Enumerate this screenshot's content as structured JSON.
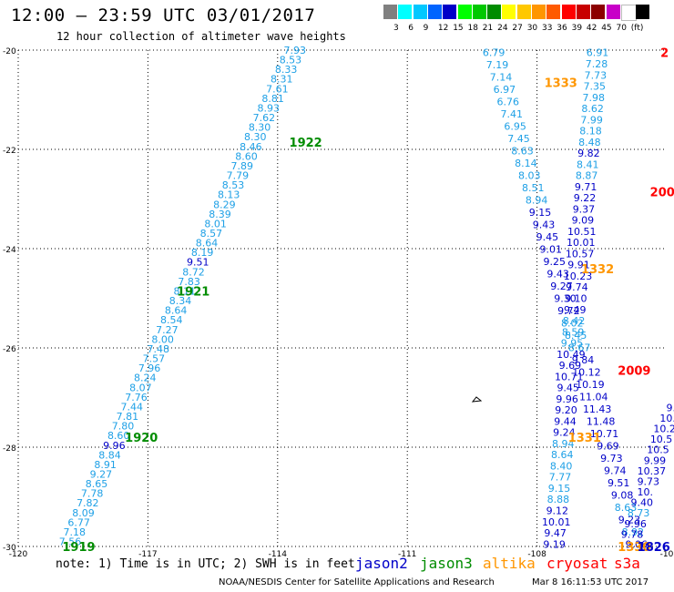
{
  "header": {
    "title": "12:00 – 23:59 UTC 03/01/2017",
    "subtitle": "12 hour collection of altimeter wave heights"
  },
  "legend": {
    "colors": [
      "#808080",
      "#00ffff",
      "#00c8ff",
      "#0064ff",
      "#0000c8",
      "#00ff00",
      "#00c800",
      "#008c00",
      "#ffff00",
      "#ffc800",
      "#ff9600",
      "#ff5a00",
      "#ff0000",
      "#c80000",
      "#8c0000",
      "#c800c8",
      "#ffffff",
      "#000000"
    ],
    "labels": [
      "3",
      "6",
      "9",
      "12",
      "15",
      "18",
      "21",
      "24",
      "27",
      "30",
      "33",
      "36",
      "39",
      "42",
      "45",
      "70",
      "(ft)"
    ]
  },
  "axes": {
    "lon_labels": [
      "-120",
      "-117",
      "-114",
      "-111",
      "-108",
      "-10"
    ],
    "lat_labels": [
      "-20",
      "-22",
      "-24",
      "-26",
      "-28",
      "-30"
    ],
    "lon_range": [
      -120,
      -105
    ],
    "lat_range": [
      -30,
      -20
    ]
  },
  "colors": {
    "light": "#1ea0e6",
    "dark": "#0000c8",
    "jason2": "#0000c8",
    "jason3": "#008c00",
    "altika": "#ff9600",
    "cryosat": "#ff0000"
  },
  "tracks": [
    {
      "name": "1919-1922",
      "start": [
        -113.6,
        -20.0
      ],
      "end": [
        -118.8,
        -29.9
      ],
      "values": [
        "7.93",
        "8.53",
        "8.33",
        "8.31",
        "7.61",
        "8.81",
        "8.93",
        "7.62",
        "8.30",
        "8.30",
        "8.46",
        "8.60",
        "7.89",
        "7.79",
        "8.53",
        "8.13",
        "8.29",
        "8.39",
        "8.01",
        "8.57",
        "8.64",
        "8.19",
        "9.51",
        "8.72",
        "7.83",
        "8.11",
        "8.34",
        "8.64",
        "8.54",
        "7.27",
        "8.00",
        "7.48",
        "7.57",
        "7.96",
        "8.24",
        "8.07",
        "7.76",
        "7.44",
        "7.81",
        "7.80",
        "8.60",
        "9.96",
        "8.84",
        "8.91",
        "9.27",
        "8.65",
        "7.78",
        "7.82",
        "8.09",
        "6.77",
        "7.18",
        "7.56"
      ],
      "dark": [
        22,
        41
      ]
    },
    {
      "name": "1332-1333",
      "start": [
        -109.0,
        -20.05
      ],
      "end": [
        -105.7,
        -29.95
      ],
      "values": [
        "6.79",
        "7.19",
        "7.14",
        "6.97",
        "6.76",
        "7.41",
        "6.95",
        "7.45",
        "8.63",
        "8.14",
        "8.03",
        "8.51",
        "8.94",
        "9.15",
        "9.43",
        "9.45",
        "9.01",
        "9.25",
        "9.43",
        "9.27",
        "9.30",
        "9.72",
        "8.02",
        "8.45",
        "8.67",
        "9.84",
        "10.12",
        "10.19",
        "11.04",
        "11.43",
        "11.48",
        "10.71",
        "9.69",
        "9.73",
        "9.74",
        "9.51",
        "9.08",
        "8.63",
        "9.23",
        "8.92",
        "9.06"
      ],
      "dark": [
        13,
        14,
        15,
        16,
        17,
        18,
        19,
        20,
        21,
        25,
        26,
        27,
        28,
        29,
        30,
        31,
        32,
        33,
        34,
        35,
        36,
        38,
        40
      ]
    },
    {
      "name": "2009",
      "start": [
        -106.6,
        -20.05
      ],
      "end": [
        -107.6,
        -29.95
      ],
      "values": [
        "6.91",
        "7.28",
        "7.73",
        "7.35",
        "7.98",
        "8.62",
        "7.99",
        "8.18",
        "8.48",
        "9.82",
        "8.41",
        "8.87",
        "9.71",
        "9.22",
        "9.37",
        "9.09",
        "10.51",
        "10.01",
        "10.57",
        "9.91",
        "10.23",
        "9.74",
        "9.10",
        "9.49",
        "8.42",
        "8.59",
        "9.95",
        "10.49",
        "9.69",
        "10.71",
        "9.45",
        "9.96",
        "9.20",
        "9.44",
        "9.24",
        "8.94",
        "8.64",
        "8.40",
        "7.77",
        "9.15",
        "8.88",
        "9.12",
        "10.01",
        "9.47",
        "9.19"
      ],
      "dark": [
        9,
        12,
        13,
        14,
        15,
        16,
        17,
        18,
        19,
        20,
        21,
        22,
        23,
        27,
        28,
        29,
        30,
        31,
        32,
        33,
        34,
        41,
        42,
        43,
        44
      ]
    },
    {
      "name": "1826",
      "start": [
        -104.9,
        -27.2
      ],
      "end": [
        -105.8,
        -29.75
      ],
      "values": [
        "9.",
        "10.",
        "10.2",
        "10.5",
        "10.5",
        "9.99",
        "10.37",
        "9.73",
        "10.",
        "9.40",
        "8.73",
        "9.96",
        "9.78"
      ],
      "dark": [
        0,
        1,
        2,
        3,
        4,
        5,
        6,
        7,
        8,
        9,
        11,
        12
      ]
    }
  ],
  "pass_labels": [
    {
      "text": "1922",
      "color": "jason3",
      "lon": -113.35,
      "lat": -21.85
    },
    {
      "text": "1921",
      "color": "jason3",
      "lon": -115.95,
      "lat": -24.85
    },
    {
      "text": "1920",
      "color": "jason3",
      "lon": -117.15,
      "lat": -27.8
    },
    {
      "text": "1919",
      "color": "jason3",
      "lon": -118.6,
      "lat": -30.0
    },
    {
      "text": "1333",
      "color": "altika",
      "lon": -107.45,
      "lat": -20.65
    },
    {
      "text": "1332",
      "color": "altika",
      "lon": -106.6,
      "lat": -24.4
    },
    {
      "text": "1331",
      "color": "altika",
      "lon": -106.9,
      "lat": -27.8
    },
    {
      "text": "1330",
      "color": "altika",
      "lon": -105.75,
      "lat": -30.0
    },
    {
      "text": "2",
      "color": "cryosat",
      "lon": -105.05,
      "lat": -20.05
    },
    {
      "text": "200",
      "color": "cryosat",
      "lon": -105.1,
      "lat": -22.85
    },
    {
      "text": "2009",
      "color": "cryosat",
      "lon": -105.75,
      "lat": -26.45
    },
    {
      "text": "1826",
      "color": "jason2",
      "lon": -105.3,
      "lat": -30.0
    }
  ],
  "footer": {
    "note": "note:  1) Time is in UTC;  2) SWH is in feet",
    "jason2": "jason2",
    "jason3": "jason3",
    "altika": "altika",
    "cryosat": "cryosat",
    "s3a": "s3a",
    "credit": "NOAA/NESDIS Center for Satellite Applications and Research",
    "timestamp": "Mar  8 16:11:53 UTC 2017"
  }
}
